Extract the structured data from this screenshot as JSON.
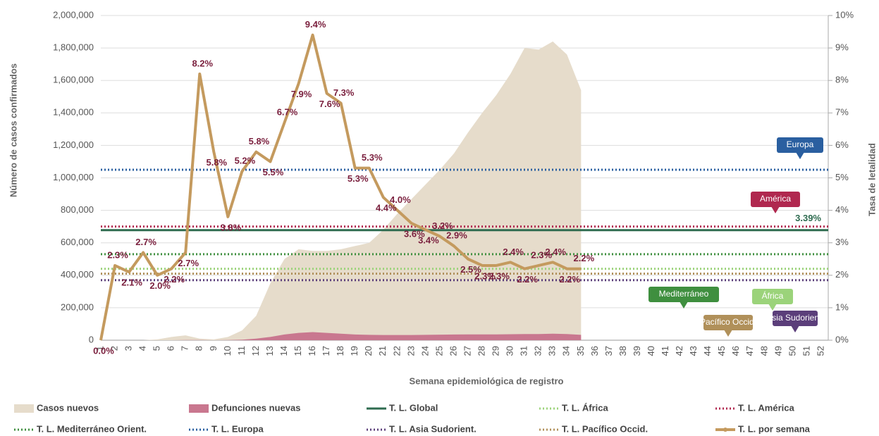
{
  "chart_data": {
    "type": "combo",
    "ylabel": "Número de casos confirmados",
    "y2label": "Tasa de letalidad",
    "xlabel": "Semana epidemiológica de registro",
    "categories": [
      1,
      2,
      3,
      4,
      5,
      6,
      7,
      8,
      9,
      10,
      11,
      12,
      13,
      14,
      15,
      16,
      17,
      18,
      19,
      20,
      21,
      22,
      23,
      24,
      25,
      26,
      27,
      28,
      29,
      30,
      31,
      32,
      33,
      34,
      35,
      36,
      37,
      38,
      39,
      40,
      41,
      42,
      43,
      44,
      45,
      46,
      47,
      48,
      49,
      50,
      51,
      52
    ],
    "ylim": [
      0,
      2000000
    ],
    "yticks": [
      0,
      {
        "value": 200000,
        "label": "200,000"
      },
      {
        "value": 400000,
        "label": "400,000"
      },
      {
        "value": 600000,
        "label": "600,000"
      },
      {
        "value": 800000,
        "label": "800,000"
      },
      {
        "value": 1000000,
        "label": "1,000,000"
      },
      {
        "value": 1200000,
        "label": "1,200,000"
      },
      {
        "value": 1400000,
        "label": "1,400,000"
      },
      {
        "value": 1600000,
        "label": "1,600,000"
      },
      {
        "value": 1800000,
        "label": "1,800,000"
      },
      {
        "value": 2000000,
        "label": "2,000,000"
      }
    ],
    "y2lim": [
      0,
      10
    ],
    "y2ticks": [
      {
        "value": 0,
        "label": "0%"
      },
      {
        "value": 1,
        "label": "1%"
      },
      {
        "value": 2,
        "label": "2%"
      },
      {
        "value": 3,
        "label": "3%"
      },
      {
        "value": 4,
        "label": "4%"
      },
      {
        "value": 5,
        "label": "5%"
      },
      {
        "value": 6,
        "label": "6%"
      },
      {
        "value": 7,
        "label": "7%"
      },
      {
        "value": 8,
        "label": "8%"
      },
      {
        "value": 9,
        "label": "9%"
      },
      {
        "value": 10,
        "label": "10%"
      }
    ],
    "grid": true,
    "series": [
      {
        "name": "Casos nuevos",
        "kind": "area",
        "color": "#e6dccb",
        "values": [
          0,
          0,
          0,
          0,
          5000,
          20000,
          30000,
          10000,
          5000,
          20000,
          60000,
          150000,
          350000,
          500000,
          560000,
          550000,
          550000,
          560000,
          580000,
          600000,
          680000,
          780000,
          870000,
          960000,
          1050000,
          1150000,
          1280000,
          1400000,
          1510000,
          1640000,
          1800000,
          1790000,
          1840000,
          1760000,
          1540000,
          null,
          null,
          null,
          null,
          null,
          null,
          null,
          null,
          null,
          null,
          null,
          null,
          null,
          null,
          null,
          null,
          null
        ]
      },
      {
        "name": "Defunciones nuevas",
        "kind": "area",
        "color": "#c9778f",
        "values": [
          0,
          0,
          0,
          0,
          0,
          0,
          1000,
          1000,
          0,
          1000,
          3000,
          10000,
          20000,
          35000,
          45000,
          50000,
          45000,
          40000,
          35000,
          33000,
          32000,
          32000,
          32000,
          33000,
          34000,
          35000,
          36000,
          36000,
          36000,
          37000,
          38000,
          38000,
          40000,
          38000,
          33000,
          null,
          null,
          null,
          null,
          null,
          null,
          null,
          null,
          null,
          null,
          null,
          null,
          null,
          null,
          null,
          null,
          null
        ]
      },
      {
        "name": "T. L. Global",
        "kind": "hline",
        "style": "solid",
        "color": "#2e6b4f",
        "axis": "y2",
        "value": 3.39,
        "value_label": "3.39%"
      },
      {
        "name": "T. L. África",
        "kind": "hline",
        "style": "dotted",
        "color": "#9bd37a",
        "axis": "y2",
        "value": 2.2,
        "callout": "África"
      },
      {
        "name": "T. L. América",
        "kind": "hline",
        "style": "dotted",
        "color": "#b0284f",
        "axis": "y2",
        "value": 3.5,
        "callout": "América"
      },
      {
        "name": "T. L. Mediterráneo Orient.",
        "kind": "hline",
        "style": "dotted",
        "color": "#3f8f3f",
        "axis": "y2",
        "value": 2.65,
        "callout": "Mediterráneo"
      },
      {
        "name": "T. L. Europa",
        "kind": "hline",
        "style": "dotted",
        "color": "#2a5fa0",
        "axis": "y2",
        "value": 5.25,
        "callout": "Europa"
      },
      {
        "name": "T. L. Asia Sudorient.",
        "kind": "hline",
        "style": "dotted",
        "color": "#5b3e7a",
        "axis": "y2",
        "value": 1.85,
        "callout": "Asia Sudorient."
      },
      {
        "name": "T. L. Pacífico Occid.",
        "kind": "hline",
        "style": "dotted",
        "color": "#b0905a",
        "axis": "y2",
        "value": 2.05,
        "callout": "Pacífico Occid."
      },
      {
        "name": "T. L. por semana",
        "kind": "line",
        "color": "#c49a5e",
        "axis": "y2",
        "values": [
          0.0,
          2.3,
          2.1,
          2.7,
          2.0,
          2.2,
          2.7,
          8.2,
          5.8,
          3.8,
          5.2,
          5.8,
          5.5,
          6.7,
          7.9,
          9.4,
          7.6,
          7.3,
          5.3,
          5.3,
          4.4,
          4.0,
          3.6,
          3.4,
          3.2,
          2.9,
          2.5,
          2.3,
          2.3,
          2.4,
          2.2,
          2.3,
          2.4,
          2.2,
          2.2,
          null,
          null,
          null,
          null,
          null,
          null,
          null,
          null,
          null,
          null,
          null,
          null,
          null,
          null,
          null,
          null,
          null
        ],
        "value_labels": [
          "0.0%",
          "2.3%",
          "2.1%",
          "2.7%",
          "2.0%",
          "2.2%",
          "2.7%",
          "8.2%",
          "5.8%",
          "3.8%",
          "5.2%",
          "5.8%",
          "5.5%",
          "6.7%",
          "7.9%",
          "9.4%",
          "7.6%",
          "7.3%",
          "5.3%",
          "5.3%",
          "4.4%",
          "4.0%",
          "3.6%",
          "3.4%",
          "3.2%",
          "2.9%",
          "2.5%",
          "2.3%",
          "2.3%",
          "2.4%",
          "2.2%",
          "2.3%",
          "2.4%",
          "2.2%",
          "2.2%",
          null,
          null,
          null,
          null,
          null,
          null,
          null,
          null,
          null,
          null,
          null,
          null,
          null,
          null,
          null,
          null,
          null
        ]
      }
    ]
  }
}
